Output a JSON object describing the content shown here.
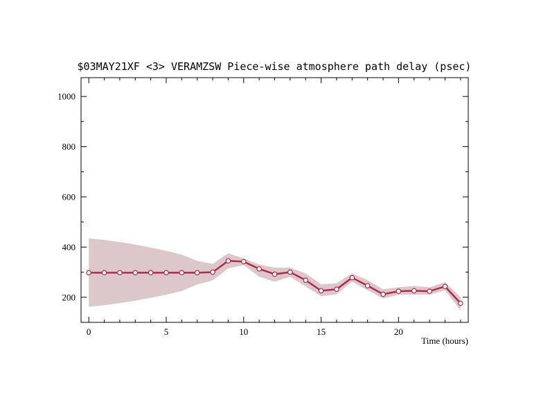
{
  "chart_data": {
    "type": "line",
    "title": "$03MAY21XF <3>  VERAMZSW  Piece-wise atmosphere path delay (psec)",
    "xlabel": "Time (hours)",
    "ylabel": "",
    "xlim": [
      -0.5,
      24.5
    ],
    "ylim": [
      100,
      1075
    ],
    "x_ticks": [
      0,
      5,
      10,
      15,
      20
    ],
    "x_tick_labels": [
      "0",
      "5",
      "10",
      "15",
      "20"
    ],
    "y_ticks": [
      200,
      400,
      600,
      800,
      1000
    ],
    "y_tick_labels": [
      "200",
      "400",
      "600",
      "800",
      "1000"
    ],
    "grid": false,
    "colors": {
      "line": "#b22a4a",
      "band": "#dcc8cb",
      "marker_fill": "#ffffff"
    },
    "series": [
      {
        "x": [
          0,
          1,
          2,
          3,
          4,
          5,
          6,
          7,
          8,
          9,
          10,
          11,
          12,
          13,
          14,
          15,
          16,
          17,
          18,
          19,
          20,
          21,
          22,
          23,
          24
        ],
        "values": [
          298,
          298,
          298,
          298,
          298,
          298,
          298,
          298,
          300,
          345,
          342,
          313,
          292,
          300,
          268,
          226,
          232,
          278,
          246,
          212,
          224,
          226,
          224,
          243,
          176
        ],
        "upper": [
          435,
          428,
          420,
          410,
          398,
          385,
          370,
          345,
          333,
          375,
          355,
          330,
          318,
          318,
          295,
          252,
          255,
          295,
          268,
          232,
          240,
          245,
          240,
          260,
          200
        ],
        "lower": [
          162,
          168,
          177,
          186,
          198,
          210,
          225,
          251,
          267,
          315,
          328,
          282,
          262,
          282,
          243,
          204,
          212,
          262,
          228,
          195,
          210,
          210,
          210,
          228,
          148
        ]
      }
    ]
  }
}
